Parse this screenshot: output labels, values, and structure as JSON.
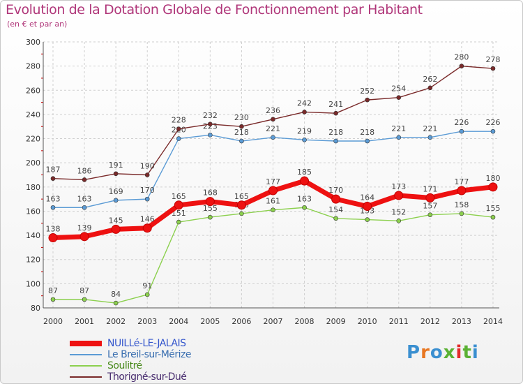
{
  "title": "Evolution de la Dotation Globale de Fonctionnement par Habitant",
  "subtitle": "(en € et par an)",
  "logo": {
    "text": "Proxiti",
    "letter_colors": [
      "#3a8fd0",
      "#e87722",
      "#3a8fd0",
      "#5ab133",
      "#e32b2b",
      "#5ab133",
      "#3a8fd0"
    ]
  },
  "chart_data": {
    "type": "line",
    "title": "Evolution de la Dotation Globale de Fonctionnement par Habitant",
    "subtitle": "(en € et par an)",
    "xlabel": "",
    "ylabel": "",
    "x": [
      2000,
      2001,
      2002,
      2003,
      2004,
      2005,
      2006,
      2007,
      2008,
      2009,
      2010,
      2011,
      2012,
      2013,
      2014
    ],
    "ylim": [
      80,
      300
    ],
    "yticks": [
      80,
      100,
      120,
      140,
      160,
      180,
      200,
      220,
      240,
      260,
      280,
      300
    ],
    "grid": true,
    "series": [
      {
        "name": "NUILLé-LE-JALAIS",
        "color": "#ee1111",
        "emphasis": true,
        "values": [
          138,
          139,
          145,
          146,
          165,
          168,
          165,
          177,
          185,
          170,
          164,
          173,
          171,
          177,
          180
        ]
      },
      {
        "name": "Le Breil-sur-Mérize",
        "color": "#5b9bd5",
        "emphasis": false,
        "values": [
          163,
          163,
          169,
          170,
          220,
          223,
          218,
          221,
          219,
          218,
          218,
          221,
          221,
          226,
          226
        ]
      },
      {
        "name": "Soulitré",
        "color": "#8cd04e",
        "emphasis": false,
        "values": [
          87,
          87,
          84,
          91,
          151,
          155,
          158,
          161,
          163,
          154,
          153,
          152,
          157,
          158,
          155
        ]
      },
      {
        "name": "Thorigné-sur-Dué",
        "color": "#7a2a2a",
        "emphasis": false,
        "values": [
          187,
          186,
          191,
          190,
          228,
          232,
          230,
          236,
          242,
          241,
          252,
          254,
          262,
          280,
          278
        ]
      }
    ],
    "legend_position": "bottom-left"
  }
}
